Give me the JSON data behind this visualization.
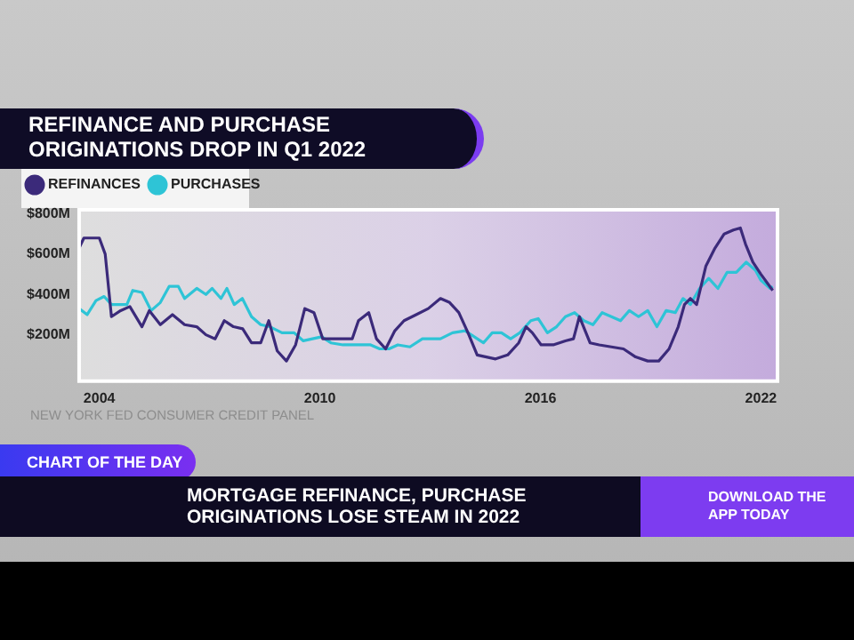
{
  "chart_data": {
    "type": "line",
    "title": "REFINANCE AND PURCHASE ORIGINATIONS DROP IN Q1 2022",
    "xlim": [
      2003.45,
      2022.45
    ],
    "xticks": [
      2004,
      2010,
      2016,
      2022
    ],
    "ylim": [
      -30,
      820
    ],
    "yticks": [
      {
        "value": 200,
        "label": "$200M"
      },
      {
        "value": 400,
        "label": "$400M"
      },
      {
        "value": 600,
        "label": "$600M"
      },
      {
        "value": 800,
        "label": "$800M"
      }
    ],
    "grid": false,
    "legend": "top left",
    "marker": "none",
    "line_style": "solid",
    "series": [
      {
        "name": "REFINANCES",
        "color": "#3b2a7a",
        "x": [
          2003.45,
          2003.58,
          2003.83,
          2004.0,
          2004.16,
          2004.33,
          2004.58,
          2004.83,
          2005.16,
          2005.36,
          2005.66,
          2005.99,
          2006.32,
          2006.65,
          2006.9,
          2007.15,
          2007.4,
          2007.65,
          2007.9,
          2008.14,
          2008.39,
          2008.61,
          2008.84,
          2009.09,
          2009.34,
          2009.59,
          2009.84,
          2010.08,
          2010.38,
          2010.63,
          2010.88,
          2011.05,
          2011.33,
          2011.54,
          2011.79,
          2012.04,
          2012.29,
          2012.62,
          2012.95,
          2013.28,
          2013.53,
          2013.78,
          2014.03,
          2014.28,
          2014.53,
          2014.78,
          2015.11,
          2015.41,
          2015.61,
          2015.78,
          2016.02,
          2016.35,
          2016.68,
          2016.9,
          2017.06,
          2017.35,
          2017.6,
          2017.93,
          2018.26,
          2018.59,
          2018.92,
          2019.22,
          2019.5,
          2019.75,
          2019.92,
          2020.08,
          2020.25,
          2020.5,
          2020.75,
          2021.0,
          2021.25,
          2021.44,
          2021.58,
          2021.78,
          2022.0,
          2022.32
        ],
        "values": [
          630,
          680,
          680,
          680,
          600,
          290,
          320,
          340,
          240,
          320,
          250,
          300,
          250,
          240,
          200,
          180,
          270,
          240,
          230,
          160,
          160,
          270,
          120,
          70,
          150,
          330,
          310,
          180,
          180,
          180,
          180,
          270,
          310,
          180,
          130,
          220,
          270,
          300,
          330,
          380,
          360,
          310,
          210,
          100,
          90,
          80,
          100,
          160,
          240,
          210,
          150,
          150,
          170,
          180,
          290,
          160,
          150,
          140,
          130,
          90,
          70,
          70,
          130,
          240,
          350,
          380,
          350,
          540,
          630,
          700,
          720,
          730,
          650,
          560,
          500,
          420
        ]
      },
      {
        "name": "PURCHASES",
        "color": "#2ec4d6",
        "x": [
          2003.45,
          2003.67,
          2003.91,
          2004.13,
          2004.33,
          2004.58,
          2004.75,
          2004.91,
          2005.16,
          2005.41,
          2005.66,
          2005.9,
          2006.15,
          2006.32,
          2006.65,
          2006.9,
          2007.07,
          2007.31,
          2007.47,
          2007.67,
          2007.89,
          2008.14,
          2008.39,
          2008.64,
          2008.97,
          2009.3,
          2009.55,
          2009.8,
          2010.05,
          2010.3,
          2010.63,
          2010.88,
          2011.13,
          2011.38,
          2011.63,
          2011.88,
          2012.12,
          2012.45,
          2012.79,
          2013.04,
          2013.28,
          2013.61,
          2013.95,
          2014.2,
          2014.45,
          2014.69,
          2014.94,
          2015.19,
          2015.44,
          2015.74,
          2015.94,
          2016.19,
          2016.44,
          2016.68,
          2016.93,
          2017.18,
          2017.43,
          2017.68,
          2017.93,
          2018.18,
          2018.42,
          2018.67,
          2018.92,
          2019.17,
          2019.42,
          2019.67,
          2019.88,
          2020.08,
          2020.33,
          2020.58,
          2020.83,
          2021.08,
          2021.33,
          2021.6,
          2021.85,
          2022.0,
          2022.25,
          2022.32
        ],
        "values": [
          330,
          300,
          370,
          390,
          350,
          350,
          350,
          420,
          410,
          320,
          360,
          440,
          440,
          380,
          430,
          400,
          430,
          380,
          430,
          350,
          380,
          290,
          250,
          240,
          210,
          210,
          170,
          180,
          190,
          160,
          150,
          150,
          150,
          150,
          130,
          130,
          150,
          140,
          180,
          180,
          180,
          210,
          220,
          190,
          160,
          210,
          210,
          180,
          210,
          270,
          280,
          210,
          240,
          290,
          310,
          270,
          250,
          310,
          290,
          270,
          320,
          290,
          320,
          240,
          320,
          310,
          380,
          350,
          430,
          480,
          430,
          510,
          510,
          560,
          520,
          470,
          430,
          440
        ]
      }
    ],
    "annotations": [
      "NEW YORK FED CONSUMER CREDIT PANEL",
      "CHART OF THE DAY",
      "MORTGAGE REFINANCE, PURCHASE ORIGINATIONS LOSE STEAM IN 2022",
      "DOWNLOAD THE APP TODAY"
    ]
  }
}
